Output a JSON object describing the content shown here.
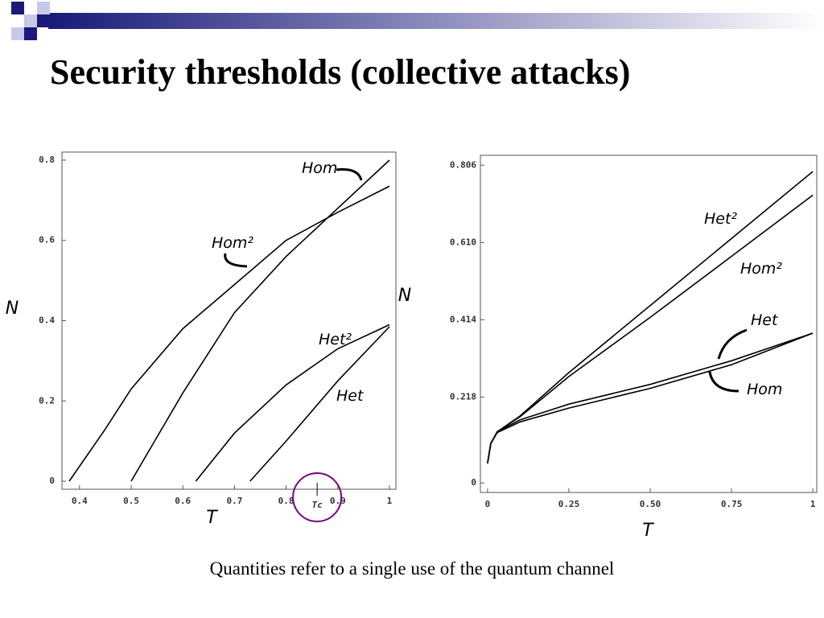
{
  "title": "Security thresholds (collective attacks)",
  "caption": "Quantities refer to a single use of the quantum channel",
  "chart_data": [
    {
      "type": "line",
      "xlabel": "T",
      "ylabel": "N",
      "xlim": [
        0.366,
        1.0125
      ],
      "ylim": [
        -0.02,
        0.82
      ],
      "xticks": [
        0.4,
        0.5,
        0.6,
        0.7,
        0.8,
        0.9,
        1
      ],
      "yticks": [
        0,
        0.2,
        0.4,
        0.6,
        0.8
      ],
      "grid": false,
      "annotations": [
        {
          "text": "Tc",
          "x": 0.86
        }
      ],
      "series": [
        {
          "name": "Hom",
          "color": "#000000",
          "x": [
            0.5,
            0.6,
            0.7,
            0.8,
            0.9,
            1.0
          ],
          "values": [
            0,
            0.22,
            0.42,
            0.56,
            0.68,
            0.8
          ]
        },
        {
          "name": "Hom²",
          "color": "#000000",
          "x": [
            0.38,
            0.45,
            0.5,
            0.6,
            0.7,
            0.8,
            0.9,
            1.0
          ],
          "values": [
            0,
            0.13,
            0.23,
            0.38,
            0.49,
            0.6,
            0.67,
            0.735
          ]
        },
        {
          "name": "Het²",
          "color": "#000000",
          "x": [
            0.625,
            0.7,
            0.8,
            0.9,
            1.0
          ],
          "values": [
            0,
            0.12,
            0.24,
            0.33,
            0.39
          ]
        },
        {
          "name": "Het",
          "color": "#000000",
          "x": [
            0.73,
            0.8,
            0.9,
            1.0
          ],
          "values": [
            0,
            0.1,
            0.25,
            0.385
          ]
        }
      ]
    },
    {
      "type": "line",
      "xlabel": "T",
      "ylabel": "N",
      "xlim": [
        -0.022,
        1.012
      ],
      "ylim": [
        -0.024,
        0.831
      ],
      "xticks": [
        0,
        0.25,
        {
          "value": 0.5,
          "label": "0.50"
        },
        0.75,
        1
      ],
      "yticks": [
        0,
        0.218,
        0.414,
        {
          "value": 0.61,
          "label": "0.610"
        },
        0.806
      ],
      "grid": false,
      "series": [
        {
          "name": "Het²",
          "color": "#000000",
          "x": [
            0,
            0.01,
            0.03,
            0.1,
            0.25,
            0.5,
            0.75,
            1.0
          ],
          "values": [
            0.05,
            0.1,
            0.13,
            0.17,
            0.28,
            0.45,
            0.62,
            0.79
          ]
        },
        {
          "name": "Hom²",
          "color": "#000000",
          "x": [
            0,
            0.01,
            0.03,
            0.1,
            0.25,
            0.5,
            0.75,
            1.0
          ],
          "values": [
            0.05,
            0.1,
            0.13,
            0.168,
            0.27,
            0.42,
            0.575,
            0.73
          ]
        },
        {
          "name": "Het",
          "color": "#000000",
          "x": [
            0,
            0.01,
            0.03,
            0.1,
            0.25,
            0.5,
            0.75,
            1.0
          ],
          "values": [
            0.05,
            0.1,
            0.13,
            0.16,
            0.2,
            0.25,
            0.31,
            0.38
          ]
        },
        {
          "name": "Hom",
          "color": "#000000",
          "x": [
            0,
            0.01,
            0.03,
            0.1,
            0.25,
            0.5,
            0.75,
            1.0
          ],
          "values": [
            0.05,
            0.1,
            0.128,
            0.155,
            0.19,
            0.24,
            0.3,
            0.38
          ]
        }
      ]
    }
  ]
}
